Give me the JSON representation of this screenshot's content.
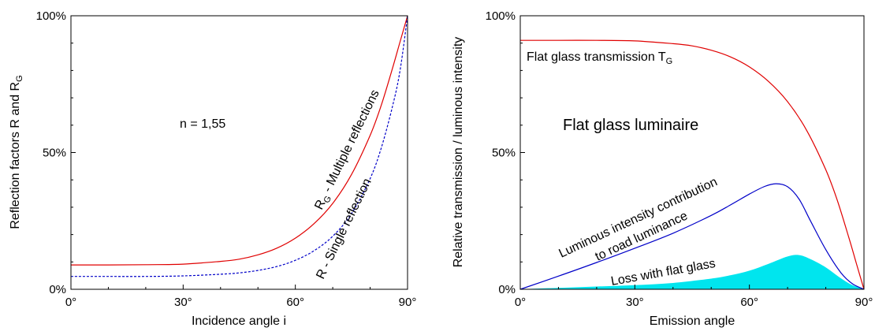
{
  "colors": {
    "red": "#e00000",
    "blue": "#0000c8",
    "cyan": "#00e5ee",
    "axis": "#000000"
  },
  "chart_data": [
    {
      "type": "line",
      "xlabel": "Incidence angle i",
      "ylabel": "Reflection factors R and R",
      "ylabel_sub": "G",
      "xlim": [
        0,
        90
      ],
      "ylim": [
        0,
        100
      ],
      "xticks": [
        0,
        30,
        60,
        90
      ],
      "xtick_labels": [
        "0°",
        "30°",
        "60°",
        "90°"
      ],
      "yticks": [
        0,
        50,
        100
      ],
      "ytick_labels": [
        "0%",
        "50%",
        "100%"
      ],
      "annotations": {
        "n_label": "n = 1,55",
        "rg_main": "R",
        "rg_sub": "G",
        "rg_rest": " - Multiple reflections",
        "r_label": "R - Single reflection"
      },
      "series": [
        {
          "name": "R - Multiple reflections",
          "color": "#e00000",
          "dash": "solid",
          "x": [
            0,
            10,
            20,
            30,
            40,
            45,
            50,
            55,
            60,
            65,
            70,
            75,
            80,
            83,
            86,
            88,
            90
          ],
          "y": [
            8.9,
            8.9,
            9.0,
            9.2,
            10.2,
            11.0,
            12.6,
            15.0,
            18.7,
            24.0,
            31.4,
            41.9,
            56.3,
            67.4,
            80.9,
            90.5,
            100
          ]
        },
        {
          "name": "R - Single reflection",
          "color": "#0000c8",
          "dash": "dashed",
          "x": [
            0,
            10,
            20,
            30,
            40,
            45,
            50,
            55,
            60,
            65,
            70,
            75,
            80,
            83,
            86,
            88,
            90
          ],
          "y": [
            4.7,
            4.7,
            4.7,
            4.9,
            5.5,
            6.0,
            6.9,
            8.3,
            10.6,
            14.1,
            19.4,
            27.6,
            40.5,
            51.8,
            67.0,
            80.0,
            100
          ]
        }
      ]
    },
    {
      "type": "line",
      "xlabel": "Emission angle",
      "ylabel": "Relative transmission / luminous intensity",
      "xlim": [
        0,
        90
      ],
      "ylim": [
        0,
        100
      ],
      "xticks": [
        0,
        30,
        60,
        90
      ],
      "xtick_labels": [
        "0°",
        "30°",
        "60°",
        "90°"
      ],
      "yticks": [
        0,
        50,
        100
      ],
      "ytick_labels": [
        "0%",
        "50%",
        "100%"
      ],
      "annotations": {
        "tg_main": "Flat glass transmission T",
        "tg_sub": "G",
        "luminaire": "Flat glass luminaire",
        "contribution_1": "Luminous intensity contribution",
        "contribution_2": "to road luminance",
        "loss": "Loss with flat glass"
      },
      "series": [
        {
          "name": "Flat glass transmission T",
          "color": "#e00000",
          "x": [
            0,
            10,
            20,
            30,
            40,
            45,
            50,
            55,
            60,
            65,
            70,
            75,
            80,
            83,
            86,
            88,
            90
          ],
          "y": [
            91.0,
            91.0,
            91.0,
            90.8,
            89.8,
            89.0,
            87.4,
            85.0,
            81.3,
            76.0,
            68.6,
            58.1,
            43.7,
            32.6,
            19.1,
            9.5,
            0
          ]
        },
        {
          "name": "Luminous intensity contribution to road luminance",
          "color": "#0000c8",
          "x": [
            0,
            10,
            20,
            30,
            40,
            50,
            55,
            60,
            64,
            67,
            70,
            73,
            76,
            80,
            84,
            87,
            90
          ],
          "y": [
            0,
            4.8,
            9.8,
            15.0,
            20.5,
            27.0,
            30.8,
            34.8,
            37.6,
            38.6,
            37.5,
            33.0,
            25.0,
            14.5,
            6.0,
            2.0,
            0
          ]
        },
        {
          "name": "Loss with flat glass",
          "type": "area",
          "color": "#00e5ee",
          "x": [
            0,
            10,
            20,
            30,
            40,
            50,
            55,
            60,
            65,
            70,
            73,
            76,
            80,
            84,
            87,
            90
          ],
          "y": [
            0,
            0.5,
            1.0,
            1.5,
            2.3,
            3.9,
            5.1,
            6.8,
            9.3,
            12.0,
            12.5,
            11.0,
            8.0,
            4.0,
            1.5,
            0
          ]
        }
      ]
    }
  ]
}
